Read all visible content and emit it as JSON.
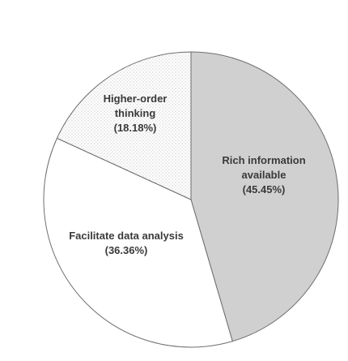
{
  "chart_data": {
    "type": "pie",
    "title": "",
    "slices": [
      {
        "name": "Rich information available",
        "label_lines": [
          "Rich information",
          "available"
        ],
        "pct_label": "(45.45%)",
        "value": 45.45,
        "fill": "#d0d0d0",
        "pattern": "none"
      },
      {
        "name": "Facilitate data analysis",
        "label_lines": [
          "Facilitate data analysis"
        ],
        "pct_label": "(36.36%)",
        "value": 36.36,
        "fill": "#ffffff",
        "pattern": "none"
      },
      {
        "name": "Higher-order thinking",
        "label_lines": [
          "Higher-order",
          "thinking"
        ],
        "pct_label": "(18.18%)",
        "value": 18.18,
        "fill": "#ffffff",
        "pattern": "dots"
      }
    ],
    "start_angle": "12 o'clock",
    "direction": "clockwise",
    "legend": "none",
    "labels": "inside slices"
  }
}
